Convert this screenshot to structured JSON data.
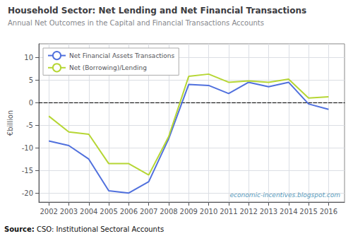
{
  "chart_data": {
    "type": "line",
    "title": "Household Sector: Net Lending and Net Financial Transactions",
    "subtitle": "Annual Net Outcomes in the Capital and Financial Transactions Accounts",
    "ylabel": "€billion",
    "watermark": "economic-incentives.blogspot.com",
    "source": {
      "label": "Source:",
      "text": "CSO: Institutional Sectoral Accounts"
    },
    "x": [
      2002,
      2003,
      2004,
      2005,
      2006,
      2007,
      2008,
      2009,
      2010,
      2011,
      2012,
      2013,
      2014,
      2015,
      2016
    ],
    "series": [
      {
        "name": "Net Financial Assets Transactions",
        "values": [
          -8.5,
          -9.5,
          -12.5,
          -19.5,
          -20.0,
          -17.5,
          -8.0,
          4.0,
          3.8,
          2.0,
          4.5,
          3.5,
          4.5,
          -0.3,
          -1.5
        ]
      },
      {
        "name": "Net (Borrowing)/Lending",
        "values": [
          -3.0,
          -6.5,
          -7.0,
          -13.5,
          -13.5,
          -16.0,
          -7.5,
          5.8,
          6.3,
          4.5,
          4.8,
          4.5,
          5.2,
          1.0,
          1.3
        ]
      }
    ],
    "xlim": [
      2001.5,
      2016.8
    ],
    "xticks": [
      2002,
      2003,
      2004,
      2005,
      2006,
      2007,
      2008,
      2009,
      2010,
      2011,
      2012,
      2013,
      2014,
      2015,
      2016
    ],
    "ylim": [
      -22,
      13
    ],
    "yticks": [
      -20,
      -15,
      -10,
      -5,
      0,
      5,
      10
    ],
    "grid": true,
    "legend": "upper left"
  }
}
